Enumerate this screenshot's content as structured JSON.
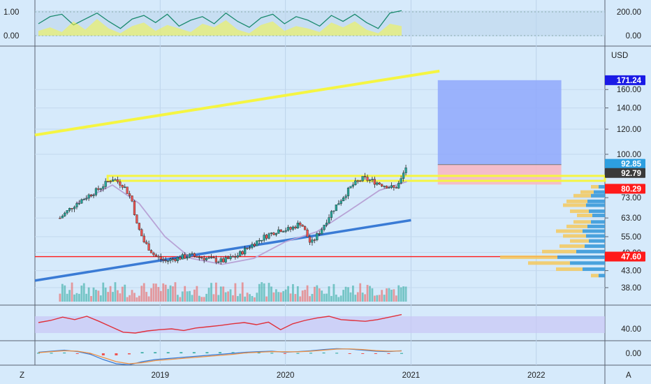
{
  "currency": "USD",
  "colors": {
    "background": "#d6eafb",
    "candle_up": "#26a69a",
    "candle_down": "#ef5350",
    "trendline": "#f5f542",
    "support_line": "#ff1a1a",
    "ma_line": "#b8a3d6",
    "rising_line": "#3a7bd5",
    "position_profit": "#8fa8fb",
    "position_loss": "#f7b8c4"
  },
  "price_tags": [
    {
      "label": "171.24",
      "color": "#1a1ae6"
    },
    {
      "label": "92.85",
      "color": "#2d9fe0"
    },
    {
      "label": "92.79",
      "color": "#3a3a3a"
    },
    {
      "label": "80.29",
      "color": "#ff1a1a"
    },
    {
      "label": "47.60",
      "color": "#ff1a1a"
    }
  ],
  "chart_data": [
    {
      "type": "candlestick",
      "panel": "price",
      "scale": "log",
      "ylim": [
        35,
        190
      ],
      "y_ticks": [
        "160.00",
        "140.00",
        "120.00",
        "100.00",
        "73.00",
        "63.00",
        "55.00",
        "49.00",
        "43.00",
        "38.00"
      ],
      "x_ticks": [
        "2019",
        "2020",
        "2021",
        "2022"
      ],
      "x_range": [
        "2018-01-01",
        "2022-07-20"
      ],
      "close": [
        {
          "date": "2018-03-15",
          "value": 63
        },
        {
          "date": "2018-05-01",
          "value": 70
        },
        {
          "date": "2018-07-01",
          "value": 77
        },
        {
          "date": "2018-08-15",
          "value": 84
        },
        {
          "date": "2018-09-15",
          "value": 80
        },
        {
          "date": "2018-10-10",
          "value": 72
        },
        {
          "date": "2018-10-25",
          "value": 60
        },
        {
          "date": "2018-11-15",
          "value": 53
        },
        {
          "date": "2018-12-15",
          "value": 48
        },
        {
          "date": "2019-01-15",
          "value": 46
        },
        {
          "date": "2019-02-15",
          "value": 47
        },
        {
          "date": "2019-04-01",
          "value": 48
        },
        {
          "date": "2019-05-15",
          "value": 47
        },
        {
          "date": "2019-07-01",
          "value": 46
        },
        {
          "date": "2019-08-15",
          "value": 48
        },
        {
          "date": "2019-09-15",
          "value": 51
        },
        {
          "date": "2019-11-01",
          "value": 55
        },
        {
          "date": "2019-12-15",
          "value": 58
        },
        {
          "date": "2020-01-15",
          "value": 58
        },
        {
          "date": "2020-02-15",
          "value": 61
        },
        {
          "date": "2020-03-15",
          "value": 52
        },
        {
          "date": "2020-04-15",
          "value": 58
        },
        {
          "date": "2020-05-15",
          "value": 66
        },
        {
          "date": "2020-06-15",
          "value": 73
        },
        {
          "date": "2020-07-15",
          "value": 80
        },
        {
          "date": "2020-08-15",
          "value": 84
        },
        {
          "date": "2020-09-15",
          "value": 82
        },
        {
          "date": "2020-10-15",
          "value": 80
        },
        {
          "date": "2020-11-15",
          "value": 78
        },
        {
          "date": "2020-12-01",
          "value": 82
        },
        {
          "date": "2020-12-20",
          "value": 92.79
        }
      ],
      "volume_panel": "bars along the bottom of the price panel",
      "overlays": {
        "moving_average": [
          {
            "date": "2018-05-01",
            "value": 70
          },
          {
            "date": "2018-08-15",
            "value": 80
          },
          {
            "date": "2018-11-01",
            "value": 70
          },
          {
            "date": "2019-01-15",
            "value": 55
          },
          {
            "date": "2019-04-01",
            "value": 47
          },
          {
            "date": "2019-07-01",
            "value": 45
          },
          {
            "date": "2019-10-01",
            "value": 47
          },
          {
            "date": "2020-01-01",
            "value": 53
          },
          {
            "date": "2020-04-01",
            "value": 57
          },
          {
            "date": "2020-07-01",
            "value": 66
          },
          {
            "date": "2020-10-01",
            "value": 77
          },
          {
            "date": "2020-12-20",
            "value": 82
          }
        ],
        "upper_trendline": [
          {
            "date": "2018-01-01",
            "value": 115
          },
          {
            "date": "2021-03-25",
            "value": 183
          }
        ],
        "rising_support": [
          {
            "date": "2018-01-01",
            "value": 40
          },
          {
            "date": "2021-01-01",
            "value": 62
          }
        ],
        "resistance_zone": {
          "start": "2018-08-01",
          "end": "2022-07-20",
          "low": 82.5,
          "high": 85.5
        },
        "horizontal_support": 47.6,
        "long_position": {
          "start": "2021-03-20",
          "end": "2022-03-15",
          "entry": 92.79,
          "target": 171.24,
          "stop": 80.29
        }
      }
    },
    {
      "type": "line",
      "panel": "top_oscillator",
      "left_ticks": [
        "1.00",
        "0.00"
      ],
      "right_ticks": [
        "200.00",
        "0.00"
      ],
      "series": [
        {
          "color": "#1a8a6e",
          "values": [
            0.5,
            0.8,
            0.9,
            0.45,
            0.7,
            0.95,
            0.6,
            0.3,
            0.7,
            0.85,
            0.55,
            0.9,
            0.4,
            0.65,
            0.8,
            0.5,
            0.95,
            0.6,
            0.35,
            0.75,
            0.9,
            0.5,
            0.8,
            0.65,
            0.4,
            0.85,
            0.6,
            0.9,
            0.55,
            0.3,
            0.95,
            1.05
          ]
        },
        {
          "color": "#f5f542",
          "values": [
            0.2,
            0.35,
            0.15,
            0.6,
            0.25,
            0.7,
            0.3,
            0.1,
            0.4,
            0.55,
            0.2,
            0.45,
            0.3,
            0.15,
            0.5,
            0.35,
            0.65,
            0.25,
            0.1,
            0.45,
            0.6,
            0.2,
            0.4,
            0.3,
            0.15,
            0.55,
            0.35,
            0.6,
            0.25,
            0.1,
            0.5,
            0.4
          ]
        }
      ]
    },
    {
      "type": "line",
      "panel": "rsi",
      "y_ticks": [
        "40.00"
      ],
      "series": [
        {
          "color": "#e0303a",
          "values": [
            55,
            60,
            68,
            62,
            70,
            58,
            45,
            32,
            30,
            35,
            38,
            40,
            36,
            42,
            45,
            48,
            52,
            55,
            50,
            56,
            38,
            52,
            60,
            66,
            70,
            62,
            60,
            58,
            62,
            68,
            74
          ]
        }
      ]
    },
    {
      "type": "line",
      "panel": "macd",
      "y_ticks": [
        "0.00"
      ],
      "series": [
        {
          "color": "#3a7bd5",
          "values": [
            0.5,
            1,
            1.5,
            0.8,
            -0.5,
            -3,
            -5,
            -5.5,
            -4,
            -3,
            -2.5,
            -2,
            -1.5,
            -1,
            -0.5,
            0,
            0.5,
            0.8,
            1,
            0.5,
            0.8,
            1.2,
            1.8,
            2.2,
            2,
            1.5,
            1,
            0.8,
            1.2
          ]
        },
        {
          "color": "#f09040",
          "values": [
            0.3,
            0.8,
            1.2,
            1,
            0,
            -2,
            -4,
            -5,
            -4.5,
            -3.5,
            -3,
            -2.5,
            -2,
            -1.5,
            -1,
            -0.5,
            0.2,
            0.5,
            0.8,
            0.7,
            0.7,
            1,
            1.5,
            2,
            2.1,
            1.8,
            1.3,
            1,
            1.1
          ]
        }
      ]
    }
  ]
}
